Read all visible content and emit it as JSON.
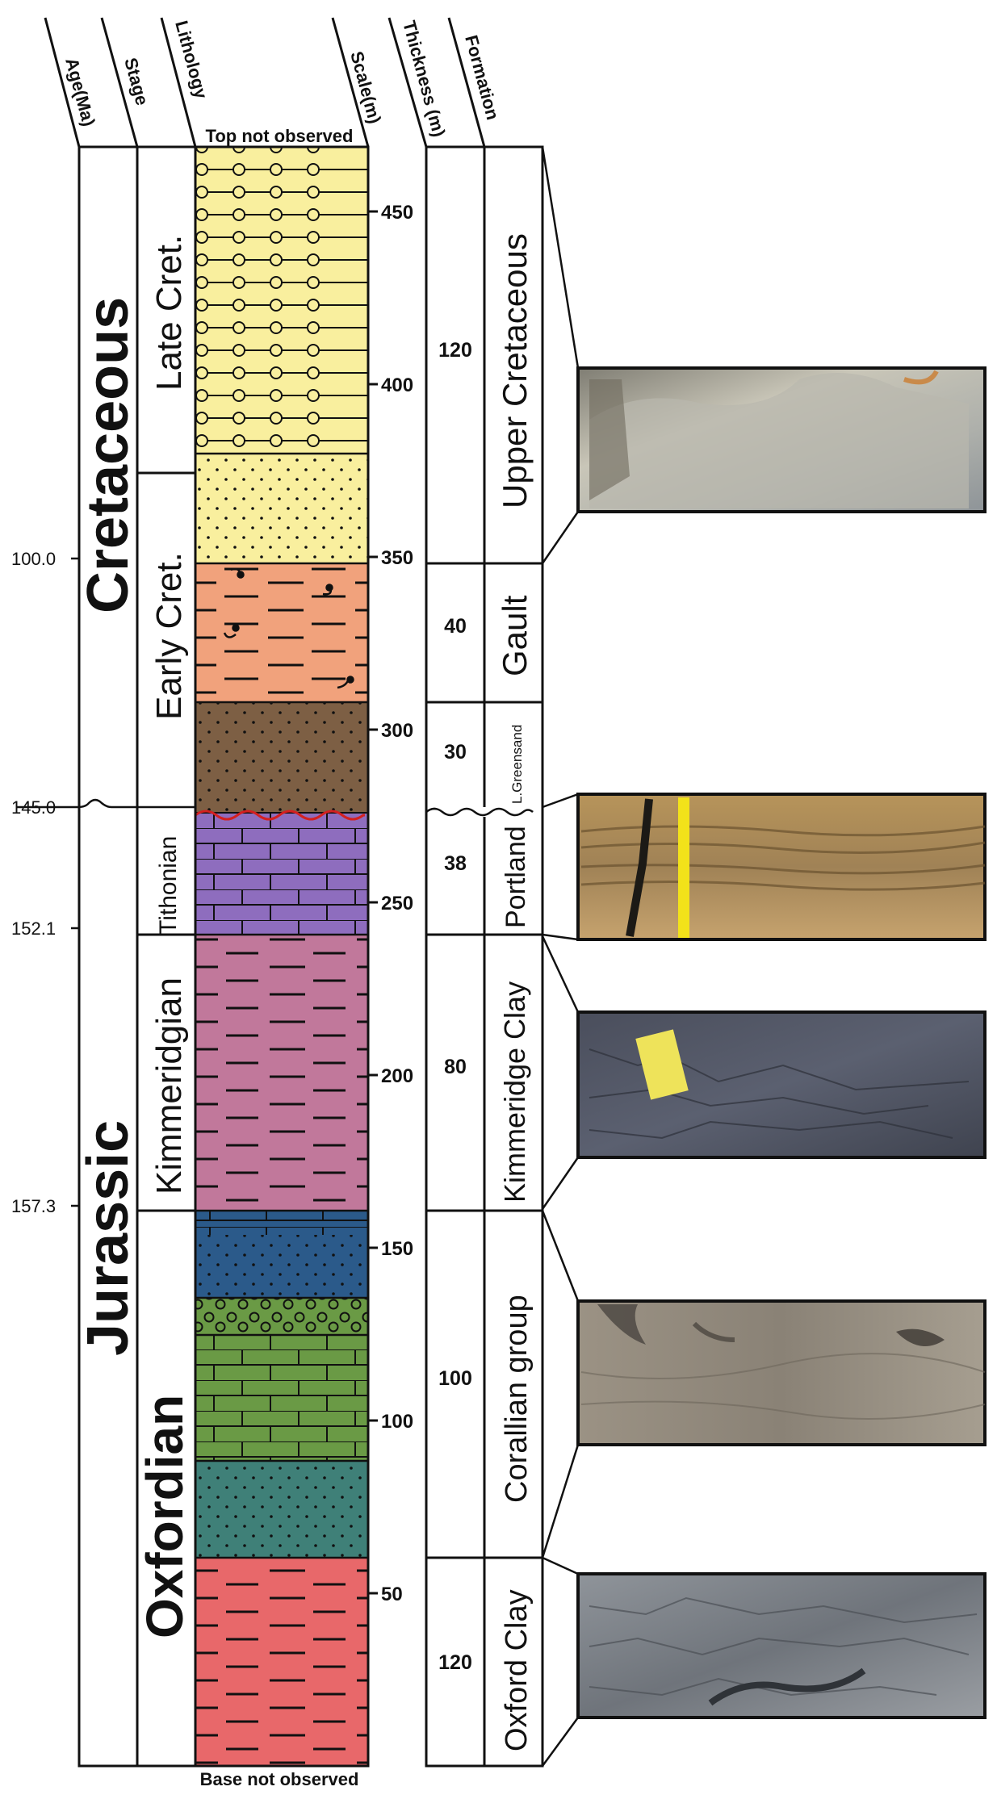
{
  "headers": {
    "age": "Age(Ma)",
    "stage": "Stage",
    "lithology": "Lithology",
    "scale": "Scale(m)",
    "thickness": "Thickness (m)",
    "formation": "Formation"
  },
  "notes": {
    "top": "Top not observed",
    "base": "Base not observed"
  },
  "periods": [
    {
      "name": "Cretaceous"
    },
    {
      "name": "Jurassic"
    }
  ],
  "stages": [
    {
      "name": "Late Cret."
    },
    {
      "name": "Early Cret."
    },
    {
      "name": "Tithonian"
    },
    {
      "name": "Kimmeridgian"
    },
    {
      "name": "Oxfordian"
    }
  ],
  "ages": [
    "100.0",
    "145.0",
    "152.1",
    "157.3"
  ],
  "scale_ticks": [
    "450",
    "400",
    "350",
    "300",
    "250",
    "200",
    "150",
    "100",
    "50"
  ],
  "formations": [
    {
      "name": "Upper Cretaceous",
      "thickness": "120"
    },
    {
      "name": "Gault",
      "thickness": "40"
    },
    {
      "name": "L.Greensand",
      "thickness": "30"
    },
    {
      "name": "Portland",
      "thickness": "38"
    },
    {
      "name": "Kimmeridge Clay",
      "thickness": "80"
    },
    {
      "name": "Corallian group",
      "thickness": "100"
    },
    {
      "name": "Oxford Clay",
      "thickness": "120"
    }
  ],
  "colors": {
    "sandstone_yellow": "#f9ef9e",
    "gault_orange": "#f1a27c",
    "greensand_brown": "#7d5f44",
    "portland_purple": "#8e6dbe",
    "kimmeridge_pink": "#c1789b",
    "corallian_blue": "#2b5a8a",
    "corallian_green": "#6a9a45",
    "corallian_teal": "#3f8078",
    "oxford_red": "#e8686a",
    "unconformity_red": "#d42020"
  },
  "photos": [
    {
      "name": "upper-cretaceous-photo"
    },
    {
      "name": "portland-photo"
    },
    {
      "name": "kimmeridge-clay-photo"
    },
    {
      "name": "corallian-photo"
    },
    {
      "name": "oxford-clay-photo"
    }
  ]
}
